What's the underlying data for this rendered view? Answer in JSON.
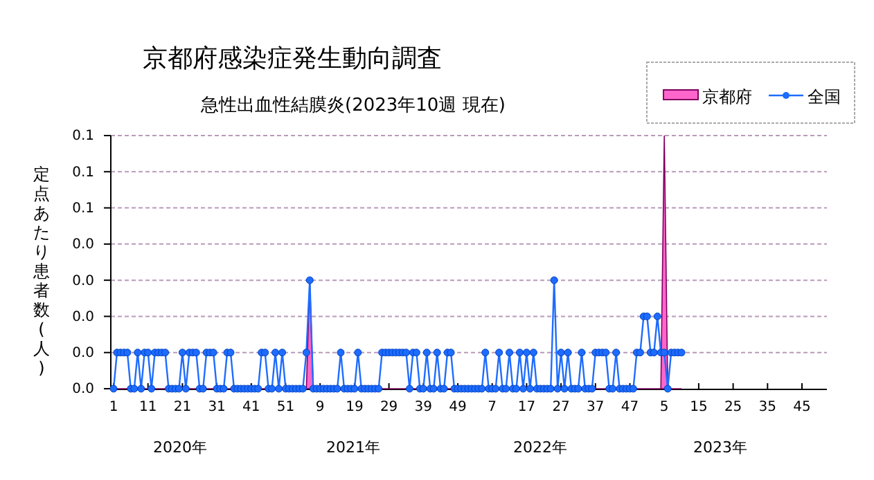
{
  "chart_data": {
    "type": "line",
    "title": "京都府感染症発生動向調査",
    "subtitle": "急性出血性結膜炎(2023年10週 現在)",
    "ylabel": "定点あたり患者数(人)",
    "annotations": [
      "2020年",
      "2021年",
      "2022年",
      "2023年"
    ],
    "categories": [
      "1",
      null,
      null,
      null,
      null,
      null,
      null,
      null,
      null,
      null,
      "11",
      null,
      null,
      null,
      null,
      null,
      null,
      null,
      null,
      null,
      "21",
      null,
      null,
      null,
      null,
      null,
      null,
      null,
      null,
      null,
      "31",
      null,
      null,
      null,
      null,
      null,
      null,
      null,
      null,
      null,
      "41",
      null,
      null,
      null,
      null,
      null,
      null,
      null,
      null,
      null,
      "51",
      null,
      null,
      null,
      null,
      null,
      null,
      null,
      null,
      null,
      "9",
      null,
      null,
      null,
      null,
      null,
      null,
      null,
      null,
      null,
      "19",
      null,
      null,
      null,
      null,
      null,
      null,
      null,
      null,
      null,
      "29",
      null,
      null,
      null,
      null,
      null,
      null,
      null,
      null,
      null,
      "39",
      null,
      null,
      null,
      null,
      null,
      null,
      null,
      null,
      null,
      "49",
      null,
      null,
      null,
      null,
      null,
      null,
      null,
      null,
      null,
      "7",
      null,
      null,
      null,
      null,
      null,
      null,
      null,
      null,
      null,
      "17",
      null,
      null,
      null,
      null,
      null,
      null,
      null,
      null,
      null,
      "27",
      null,
      null,
      null,
      null,
      null,
      null,
      null,
      null,
      null,
      "37",
      null,
      null,
      null,
      null,
      null,
      null,
      null,
      null,
      null,
      "47",
      null,
      null,
      null,
      null,
      null,
      null,
      null,
      null,
      null,
      "5",
      null,
      null,
      null,
      null,
      null,
      null,
      null,
      null,
      null,
      "15",
      null,
      null,
      null,
      null,
      null,
      null,
      null,
      null,
      null,
      "25",
      null,
      null,
      null,
      null,
      null,
      null,
      null,
      null,
      null,
      "35",
      null,
      null,
      null,
      null,
      null,
      null,
      null,
      null,
      null,
      "45",
      null,
      null,
      null,
      null,
      null,
      null,
      null
    ],
    "series": [
      {
        "name": "京都府",
        "type": "area",
        "color": "#ff66cc",
        "values": [
          0,
          0,
          0,
          0,
          0,
          0,
          0,
          0,
          0,
          0,
          0,
          0,
          0,
          0,
          0,
          0,
          0,
          0,
          0,
          0,
          0,
          0,
          0,
          0,
          0,
          0,
          0,
          0,
          0,
          0,
          0,
          0,
          0,
          0,
          0,
          0,
          0,
          0,
          0,
          0,
          0,
          0,
          0,
          0,
          0,
          0,
          0,
          0,
          0,
          0,
          0,
          0,
          0,
          0,
          0,
          0,
          0,
          0.03,
          0,
          0,
          0,
          0,
          0,
          0,
          0,
          0,
          0,
          0,
          0,
          0,
          0,
          0,
          0,
          0,
          0,
          0,
          0,
          0,
          0,
          0,
          0,
          0,
          0,
          0,
          0,
          0,
          0,
          0,
          0,
          0,
          0,
          0,
          0,
          0,
          0,
          0,
          0,
          0,
          0,
          0,
          0,
          0,
          0,
          0,
          0,
          0,
          0,
          0,
          0,
          0,
          0,
          0,
          0,
          0,
          0,
          0,
          0,
          0,
          0,
          0,
          0,
          0,
          0,
          0,
          0,
          0,
          0,
          0,
          0,
          0,
          0,
          0,
          0,
          0,
          0,
          0,
          0,
          0,
          0,
          0,
          0,
          0,
          0,
          0,
          0,
          0,
          0,
          0,
          0,
          0,
          0,
          0,
          0,
          0,
          0,
          0,
          0,
          0,
          0,
          0,
          0.07,
          0,
          0,
          0,
          0,
          0,
          null,
          null,
          null,
          null,
          null,
          null,
          null,
          null,
          null,
          null,
          null,
          null,
          null,
          null,
          null,
          null,
          null,
          null,
          null,
          null,
          null,
          null,
          null,
          null,
          null,
          null,
          null,
          null,
          null,
          null,
          null,
          null,
          null,
          null,
          null,
          null,
          null,
          null,
          null,
          null,
          null,
          null
        ]
      },
      {
        "name": "全国",
        "color": "#1e6cff",
        "marker": "circle",
        "values": [
          0,
          0.01,
          0.01,
          0.01,
          0.01,
          0,
          0,
          0.01,
          0,
          0.01,
          0.01,
          0,
          0.01,
          0.01,
          0.01,
          0.01,
          0,
          0,
          0,
          0,
          0.01,
          0,
          0.01,
          0.01,
          0.01,
          0,
          0,
          0.01,
          0.01,
          0.01,
          0,
          0,
          0,
          0.01,
          0.01,
          0,
          0,
          0,
          0,
          0,
          0,
          0,
          0,
          0.01,
          0.01,
          0,
          0,
          0.01,
          0,
          0.01,
          0,
          0,
          0,
          0,
          0,
          0,
          0.01,
          0.03,
          0,
          0,
          0,
          0,
          0,
          0,
          0,
          0,
          0.01,
          0,
          0,
          0,
          0,
          0.01,
          0,
          0,
          0,
          0,
          0,
          0,
          0.01,
          0.01,
          0.01,
          0.01,
          0.01,
          0.01,
          0.01,
          0.01,
          0,
          0.01,
          0.01,
          0,
          0,
          0.01,
          0,
          0,
          0.01,
          0,
          0,
          0.01,
          0.01,
          0,
          0,
          0,
          0,
          0,
          0,
          0,
          0,
          0,
          0.01,
          0,
          0,
          0,
          0.01,
          0,
          0,
          0.01,
          0,
          0,
          0.01,
          0,
          0.01,
          0,
          0.01,
          0,
          0,
          0,
          0,
          0,
          0.03,
          0,
          0.01,
          0,
          0.01,
          0,
          0,
          0,
          0.01,
          0,
          0,
          0,
          0.01,
          0.01,
          0.01,
          0.01,
          0,
          0,
          0.01,
          0,
          0,
          0,
          0,
          0,
          0.01,
          0.01,
          0.02,
          0.02,
          0.01,
          0.01,
          0.02,
          0.01,
          0.01,
          0,
          0.01,
          0.01,
          0.01,
          0.01,
          null,
          null,
          null,
          null,
          null,
          null,
          null,
          null,
          null,
          null,
          null,
          null,
          null,
          null,
          null,
          null,
          null,
          null,
          null,
          null,
          null,
          null,
          null,
          null,
          null,
          null,
          null,
          null,
          null,
          null,
          null,
          null,
          null,
          null,
          null,
          null,
          null,
          null,
          null,
          null,
          null,
          null
        ]
      }
    ],
    "ylim": [
      0,
      0.07
    ],
    "yticks": [
      {
        "value": 0,
        "label": "0.0"
      },
      {
        "value": 0.01,
        "label": "0.0"
      },
      {
        "value": 0.02,
        "label": "0.0"
      },
      {
        "value": 0.03,
        "label": "0.0"
      },
      {
        "value": 0.04,
        "label": "0.0"
      },
      {
        "value": 0.05,
        "label": "0.1"
      },
      {
        "value": 0.06,
        "label": "0.1"
      },
      {
        "value": 0.07,
        "label": "0.1"
      }
    ],
    "grid": "y",
    "legend": "top right"
  }
}
